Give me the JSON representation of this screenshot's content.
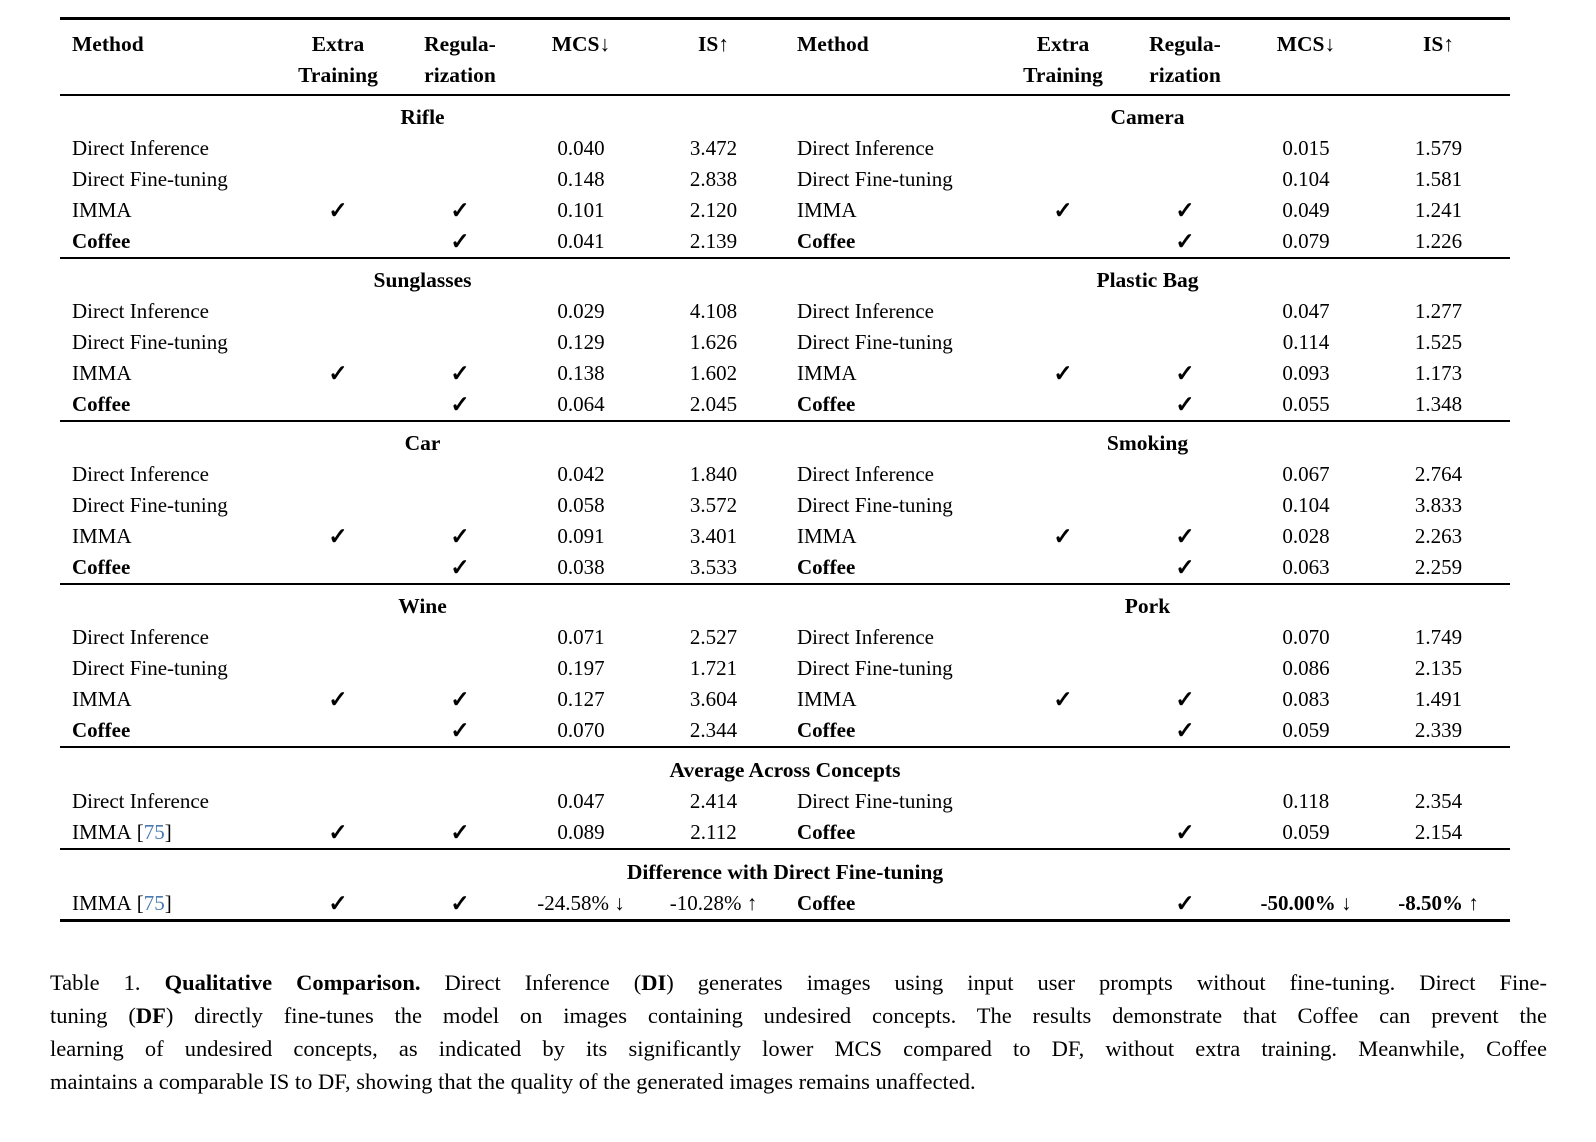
{
  "table": {
    "check_glyph": "✓",
    "citation_color": "#4a7ab0",
    "header": {
      "method": "Method",
      "extra1": "Extra",
      "extra2": "Training",
      "reg1": "Regula-",
      "reg2": "rization",
      "mcs": "MCS↓",
      "is": "IS↑"
    },
    "pair_sections": [
      {
        "left": {
          "title": "Rifle",
          "rows": [
            {
              "m": "Direct Inference",
              "mcs": "0.040",
              "is": "3.472"
            },
            {
              "m": "Direct Fine-tuning",
              "mcs": "0.148",
              "is": "2.838"
            },
            {
              "m": "IMMA",
              "et": true,
              "rg": true,
              "mcs": "0.101",
              "is": "2.120"
            },
            {
              "m": "Coffee",
              "b": true,
              "rg": true,
              "mcs": "0.041",
              "is": "2.139"
            }
          ]
        },
        "right": {
          "title": "Camera",
          "rows": [
            {
              "m": "Direct Inference",
              "mcs": "0.015",
              "is": "1.579"
            },
            {
              "m": "Direct Fine-tuning",
              "mcs": "0.104",
              "is": "1.581"
            },
            {
              "m": "IMMA",
              "et": true,
              "rg": true,
              "mcs": "0.049",
              "is": "1.241"
            },
            {
              "m": "Coffee",
              "b": true,
              "rg": true,
              "mcs": "0.079",
              "is": "1.226"
            }
          ]
        }
      },
      {
        "left": {
          "title": "Sunglasses",
          "rows": [
            {
              "m": "Direct Inference",
              "mcs": "0.029",
              "is": "4.108"
            },
            {
              "m": "Direct Fine-tuning",
              "mcs": "0.129",
              "is": "1.626"
            },
            {
              "m": "IMMA",
              "et": true,
              "rg": true,
              "mcs": "0.138",
              "is": "1.602"
            },
            {
              "m": "Coffee",
              "b": true,
              "rg": true,
              "mcs": "0.064",
              "is": "2.045"
            }
          ]
        },
        "right": {
          "title": "Plastic Bag",
          "rows": [
            {
              "m": "Direct Inference",
              "mcs": "0.047",
              "is": "1.277"
            },
            {
              "m": "Direct Fine-tuning",
              "mcs": "0.114",
              "is": "1.525"
            },
            {
              "m": "IMMA",
              "et": true,
              "rg": true,
              "mcs": "0.093",
              "is": "1.173"
            },
            {
              "m": "Coffee",
              "b": true,
              "rg": true,
              "mcs": "0.055",
              "is": "1.348"
            }
          ]
        }
      },
      {
        "left": {
          "title": "Car",
          "rows": [
            {
              "m": "Direct Inference",
              "mcs": "0.042",
              "is": "1.840"
            },
            {
              "m": "Direct Fine-tuning",
              "mcs": "0.058",
              "is": "3.572"
            },
            {
              "m": "IMMA",
              "et": true,
              "rg": true,
              "mcs": "0.091",
              "is": "3.401"
            },
            {
              "m": "Coffee",
              "b": true,
              "rg": true,
              "mcs": "0.038",
              "is": "3.533"
            }
          ]
        },
        "right": {
          "title": "Smoking",
          "rows": [
            {
              "m": "Direct Inference",
              "mcs": "0.067",
              "is": "2.764"
            },
            {
              "m": "Direct Fine-tuning",
              "mcs": "0.104",
              "is": "3.833"
            },
            {
              "m": "IMMA",
              "et": true,
              "rg": true,
              "mcs": "0.028",
              "is": "2.263"
            },
            {
              "m": "Coffee",
              "b": true,
              "rg": true,
              "mcs": "0.063",
              "is": "2.259"
            }
          ]
        }
      },
      {
        "left": {
          "title": "Wine",
          "rows": [
            {
              "m": "Direct Inference",
              "mcs": "0.071",
              "is": "2.527"
            },
            {
              "m": "Direct Fine-tuning",
              "mcs": "0.197",
              "is": "1.721"
            },
            {
              "m": "IMMA",
              "et": true,
              "rg": true,
              "mcs": "0.127",
              "is": "3.604"
            },
            {
              "m": "Coffee",
              "b": true,
              "rg": true,
              "mcs": "0.070",
              "is": "2.344"
            }
          ]
        },
        "right": {
          "title": "Pork",
          "rows": [
            {
              "m": "Direct Inference",
              "mcs": "0.070",
              "is": "1.749"
            },
            {
              "m": "Direct Fine-tuning",
              "mcs": "0.086",
              "is": "2.135"
            },
            {
              "m": "IMMA",
              "et": true,
              "rg": true,
              "mcs": "0.083",
              "is": "1.491"
            },
            {
              "m": "Coffee",
              "b": true,
              "rg": true,
              "mcs": "0.059",
              "is": "2.339"
            }
          ]
        }
      }
    ],
    "span_sections": [
      {
        "title": "Average Across Concepts",
        "left_rows": [
          {
            "m": "Direct Inference",
            "mcs": "0.047",
            "is": "2.414"
          },
          {
            "m": "IMMA",
            "cite": "75",
            "et": true,
            "rg": true,
            "mcs": "0.089",
            "is": "2.112"
          }
        ],
        "right_rows": [
          {
            "m": "Direct Fine-tuning",
            "mcs": "0.118",
            "is": "2.354"
          },
          {
            "m": "Coffee",
            "b": true,
            "rg": true,
            "mcs": "0.059",
            "is": "2.154"
          }
        ]
      },
      {
        "title": "Difference with Direct Fine-tuning",
        "left_rows": [
          {
            "m": "IMMA",
            "cite": "75",
            "et": true,
            "rg": true,
            "mcs": "-24.58% ↓",
            "is": "-10.28% ↑"
          }
        ],
        "right_rows": [
          {
            "m": "Coffee",
            "b": true,
            "rg": true,
            "mcs": "-50.00% ↓",
            "is": "-8.50% ↑",
            "bv": true
          }
        ]
      }
    ]
  },
  "caption": {
    "lines": [
      {
        "segments": [
          {
            "t": "Table 1.  "
          },
          {
            "t": "Qualitative Comparison.",
            "b": true
          },
          {
            "t": "  Direct Inference ("
          },
          {
            "t": "DI",
            "b": true
          },
          {
            "t": ") generates images using input user prompts without fine-tuning.  Direct Fine-"
          }
        ]
      },
      {
        "segments": [
          {
            "t": "tuning ("
          },
          {
            "t": "DF",
            "b": true
          },
          {
            "t": ") directly fine-tunes the model on images containing undesired concepts.  The results demonstrate that Coffee can prevent the"
          }
        ]
      },
      {
        "segments": [
          {
            "t": "learning of undesired concepts, as indicated by its significantly lower MCS compared to DF, without extra training.  Meanwhile, Coffee"
          }
        ]
      },
      {
        "segments": [
          {
            "t": "maintains a comparable IS to DF, showing that the quality of the generated images remains unaffected."
          }
        ]
      }
    ]
  }
}
